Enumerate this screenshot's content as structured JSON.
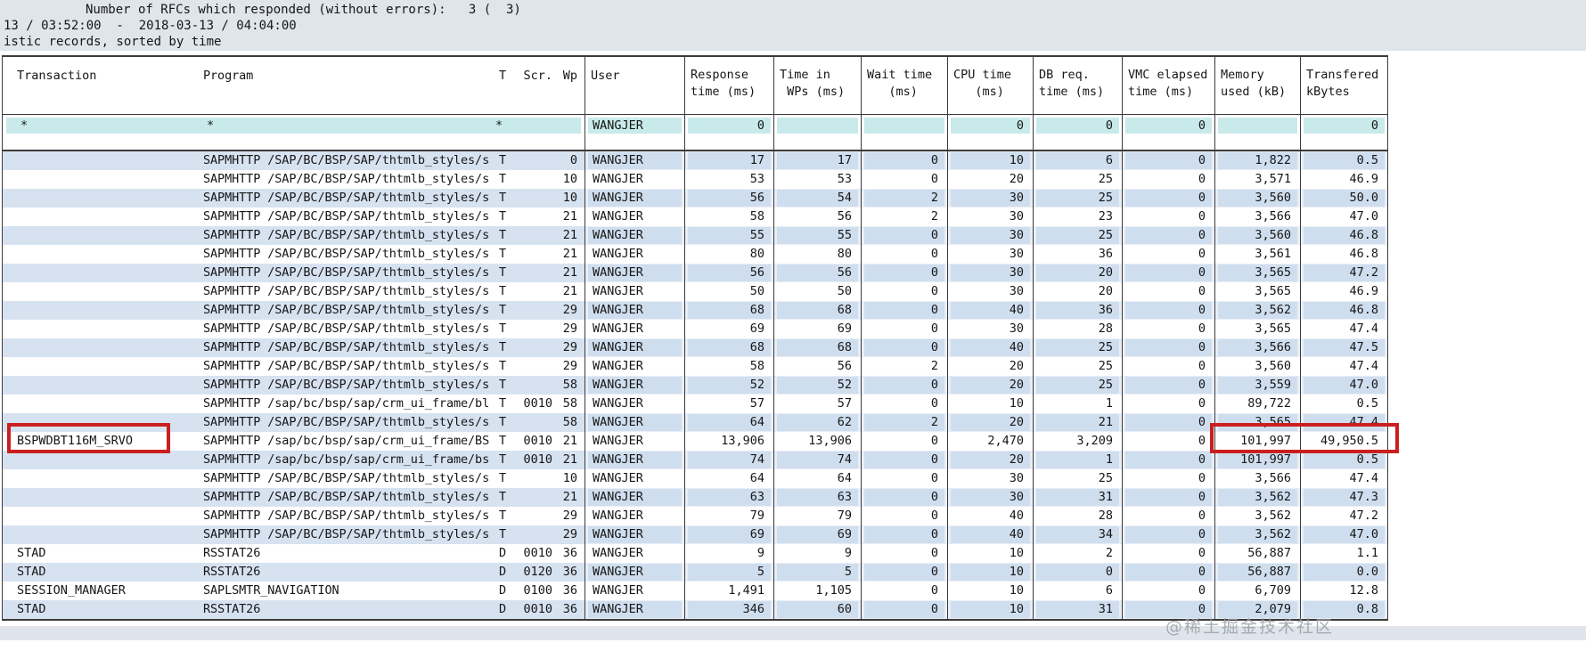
{
  "page": {
    "top_lines": {
      "line1": "Number of RFCs which responded (without errors):   3 (  3)",
      "line2": "13 / 03:52:00  -  2018-03-13 / 04:04:00",
      "line3": "istic records, sorted by time"
    },
    "watermark": "@稀土掘金技术社区"
  },
  "colors": {
    "highlight_border": "#cb1f1f",
    "row_stripe": "#e9eef6",
    "filter_teal": "#c9eaea",
    "band": "#dfe5eb"
  },
  "table": {
    "headers": {
      "transaction": "Transaction",
      "program": "Program",
      "t": "T",
      "scr": "Scr.",
      "wp": "Wp",
      "user": "User",
      "metrics": [
        {
          "l1": "Response",
          "l2": "time (ms)"
        },
        {
          "l1": "Time in",
          "l2": " WPs (ms)"
        },
        {
          "l1": "Wait time",
          "l2": "   (ms)"
        },
        {
          "l1": "CPU time",
          "l2": "   (ms)"
        },
        {
          "l1": "DB req.",
          "l2": "time (ms)"
        },
        {
          "l1": "VMC elapsed",
          "l2": "time (ms)"
        },
        {
          "l1": "Memory",
          "l2": "used (kB)"
        },
        {
          "l1": "Transfered",
          "l2": "kBytes"
        }
      ]
    },
    "filter_row": {
      "transaction": "*",
      "program": "*",
      "t": "*",
      "scr": "",
      "wp": "",
      "user": "WANGJER",
      "values": [
        "0",
        "",
        "",
        "0",
        "0",
        "0",
        "",
        "0"
      ]
    },
    "highlight_row_index": 15,
    "rows": [
      {
        "transaction": "",
        "program": "SAPMHTTP /SAP/BC/BSP/SAP/thtmlb_styles/s",
        "t": "T",
        "scr": "",
        "wp": "0",
        "user": "WANGJER",
        "stripe": true,
        "values": [
          "17",
          "17",
          "0",
          "10",
          "6",
          "0",
          "1,822",
          "0.5"
        ]
      },
      {
        "transaction": "",
        "program": "SAPMHTTP /SAP/BC/BSP/SAP/thtmlb_styles/s",
        "t": "T",
        "scr": "",
        "wp": "10",
        "user": "WANGJER",
        "stripe": false,
        "values": [
          "53",
          "53",
          "0",
          "20",
          "25",
          "0",
          "3,571",
          "46.9"
        ]
      },
      {
        "transaction": "",
        "program": "SAPMHTTP /SAP/BC/BSP/SAP/thtmlb_styles/s",
        "t": "T",
        "scr": "",
        "wp": "10",
        "user": "WANGJER",
        "stripe": true,
        "values": [
          "56",
          "54",
          "2",
          "30",
          "25",
          "0",
          "3,560",
          "50.0"
        ]
      },
      {
        "transaction": "",
        "program": "SAPMHTTP /SAP/BC/BSP/SAP/thtmlb_styles/s",
        "t": "T",
        "scr": "",
        "wp": "21",
        "user": "WANGJER",
        "stripe": false,
        "values": [
          "58",
          "56",
          "2",
          "30",
          "23",
          "0",
          "3,566",
          "47.0"
        ]
      },
      {
        "transaction": "",
        "program": "SAPMHTTP /SAP/BC/BSP/SAP/thtmlb_styles/s",
        "t": "T",
        "scr": "",
        "wp": "21",
        "user": "WANGJER",
        "stripe": true,
        "values": [
          "55",
          "55",
          "0",
          "30",
          "25",
          "0",
          "3,560",
          "46.8"
        ]
      },
      {
        "transaction": "",
        "program": "SAPMHTTP /SAP/BC/BSP/SAP/thtmlb_styles/s",
        "t": "T",
        "scr": "",
        "wp": "21",
        "user": "WANGJER",
        "stripe": false,
        "values": [
          "80",
          "80",
          "0",
          "30",
          "36",
          "0",
          "3,561",
          "46.8"
        ]
      },
      {
        "transaction": "",
        "program": "SAPMHTTP /SAP/BC/BSP/SAP/thtmlb_styles/s",
        "t": "T",
        "scr": "",
        "wp": "21",
        "user": "WANGJER",
        "stripe": true,
        "values": [
          "56",
          "56",
          "0",
          "30",
          "20",
          "0",
          "3,565",
          "47.2"
        ]
      },
      {
        "transaction": "",
        "program": "SAPMHTTP /SAP/BC/BSP/SAP/thtmlb_styles/s",
        "t": "T",
        "scr": "",
        "wp": "21",
        "user": "WANGJER",
        "stripe": false,
        "values": [
          "50",
          "50",
          "0",
          "30",
          "20",
          "0",
          "3,565",
          "46.9"
        ]
      },
      {
        "transaction": "",
        "program": "SAPMHTTP /SAP/BC/BSP/SAP/thtmlb_styles/s",
        "t": "T",
        "scr": "",
        "wp": "29",
        "user": "WANGJER",
        "stripe": true,
        "values": [
          "68",
          "68",
          "0",
          "40",
          "36",
          "0",
          "3,562",
          "46.8"
        ]
      },
      {
        "transaction": "",
        "program": "SAPMHTTP /SAP/BC/BSP/SAP/thtmlb_styles/s",
        "t": "T",
        "scr": "",
        "wp": "29",
        "user": "WANGJER",
        "stripe": false,
        "values": [
          "69",
          "69",
          "0",
          "30",
          "28",
          "0",
          "3,565",
          "47.4"
        ]
      },
      {
        "transaction": "",
        "program": "SAPMHTTP /SAP/BC/BSP/SAP/thtmlb_styles/s",
        "t": "T",
        "scr": "",
        "wp": "29",
        "user": "WANGJER",
        "stripe": true,
        "values": [
          "68",
          "68",
          "0",
          "40",
          "25",
          "0",
          "3,566",
          "47.5"
        ]
      },
      {
        "transaction": "",
        "program": "SAPMHTTP /SAP/BC/BSP/SAP/thtmlb_styles/s",
        "t": "T",
        "scr": "",
        "wp": "29",
        "user": "WANGJER",
        "stripe": false,
        "values": [
          "58",
          "56",
          "2",
          "20",
          "25",
          "0",
          "3,560",
          "47.4"
        ]
      },
      {
        "transaction": "",
        "program": "SAPMHTTP /SAP/BC/BSP/SAP/thtmlb_styles/s",
        "t": "T",
        "scr": "",
        "wp": "58",
        "user": "WANGJER",
        "stripe": true,
        "values": [
          "52",
          "52",
          "0",
          "20",
          "25",
          "0",
          "3,559",
          "47.0"
        ]
      },
      {
        "transaction": "",
        "program": "SAPMHTTP /sap/bc/bsp/sap/crm_ui_frame/bl",
        "t": "T",
        "scr": "0010",
        "wp": "58",
        "user": "WANGJER",
        "stripe": false,
        "values": [
          "57",
          "57",
          "0",
          "10",
          "1",
          "0",
          "89,722",
          "0.5"
        ]
      },
      {
        "transaction": "",
        "program": "SAPMHTTP /SAP/BC/BSP/SAP/thtmlb_styles/s",
        "t": "T",
        "scr": "",
        "wp": "58",
        "user": "WANGJER",
        "stripe": true,
        "values": [
          "64",
          "62",
          "2",
          "20",
          "21",
          "0",
          "3,565",
          "47.4"
        ]
      },
      {
        "transaction": "BSPWDBT116M_SRVO",
        "program": "SAPMHTTP /sap/bc/bsp/sap/crm_ui_frame/BS",
        "t": "T",
        "scr": "0010",
        "wp": "21",
        "user": "WANGJER",
        "stripe": false,
        "values": [
          "13,906",
          "13,906",
          "0",
          "2,470",
          "3,209",
          "0",
          "101,997",
          "49,950.5"
        ]
      },
      {
        "transaction": "",
        "program": "SAPMHTTP /sap/bc/bsp/sap/crm_ui_frame/bs",
        "t": "T",
        "scr": "0010",
        "wp": "21",
        "user": "WANGJER",
        "stripe": true,
        "values": [
          "74",
          "74",
          "0",
          "20",
          "1",
          "0",
          "101,997",
          "0.5"
        ]
      },
      {
        "transaction": "",
        "program": "SAPMHTTP /SAP/BC/BSP/SAP/thtmlb_styles/s",
        "t": "T",
        "scr": "",
        "wp": "10",
        "user": "WANGJER",
        "stripe": false,
        "values": [
          "64",
          "64",
          "0",
          "30",
          "25",
          "0",
          "3,566",
          "47.4"
        ]
      },
      {
        "transaction": "",
        "program": "SAPMHTTP /SAP/BC/BSP/SAP/thtmlb_styles/s",
        "t": "T",
        "scr": "",
        "wp": "21",
        "user": "WANGJER",
        "stripe": true,
        "values": [
          "63",
          "63",
          "0",
          "30",
          "31",
          "0",
          "3,562",
          "47.3"
        ]
      },
      {
        "transaction": "",
        "program": "SAPMHTTP /SAP/BC/BSP/SAP/thtmlb_styles/s",
        "t": "T",
        "scr": "",
        "wp": "29",
        "user": "WANGJER",
        "stripe": false,
        "values": [
          "79",
          "79",
          "0",
          "40",
          "28",
          "0",
          "3,562",
          "47.2"
        ]
      },
      {
        "transaction": "",
        "program": "SAPMHTTP /SAP/BC/BSP/SAP/thtmlb_styles/s",
        "t": "T",
        "scr": "",
        "wp": "29",
        "user": "WANGJER",
        "stripe": true,
        "values": [
          "69",
          "69",
          "0",
          "40",
          "34",
          "0",
          "3,562",
          "47.0"
        ]
      },
      {
        "transaction": "STAD",
        "program": "RSSTAT26",
        "t": "D",
        "scr": "0010",
        "wp": "36",
        "user": "WANGJER",
        "stripe": false,
        "values": [
          "9",
          "9",
          "0",
          "10",
          "2",
          "0",
          "56,887",
          "1.1"
        ]
      },
      {
        "transaction": "STAD",
        "program": "RSSTAT26",
        "t": "D",
        "scr": "0120",
        "wp": "36",
        "user": "WANGJER",
        "stripe": true,
        "values": [
          "5",
          "5",
          "0",
          "10",
          "0",
          "0",
          "56,887",
          "0.0"
        ]
      },
      {
        "transaction": "SESSION_MANAGER",
        "program": "SAPLSMTR_NAVIGATION",
        "t": "D",
        "scr": "0100",
        "wp": "36",
        "user": "WANGJER",
        "stripe": false,
        "values": [
          "1,491",
          "1,105",
          "0",
          "10",
          "6",
          "0",
          "6,709",
          "12.8"
        ]
      },
      {
        "transaction": "STAD",
        "program": "RSSTAT26",
        "t": "D",
        "scr": "0010",
        "wp": "36",
        "user": "WANGJER",
        "stripe": true,
        "values": [
          "346",
          "60",
          "0",
          "10",
          "31",
          "0",
          "2,079",
          "0.8"
        ]
      }
    ]
  }
}
